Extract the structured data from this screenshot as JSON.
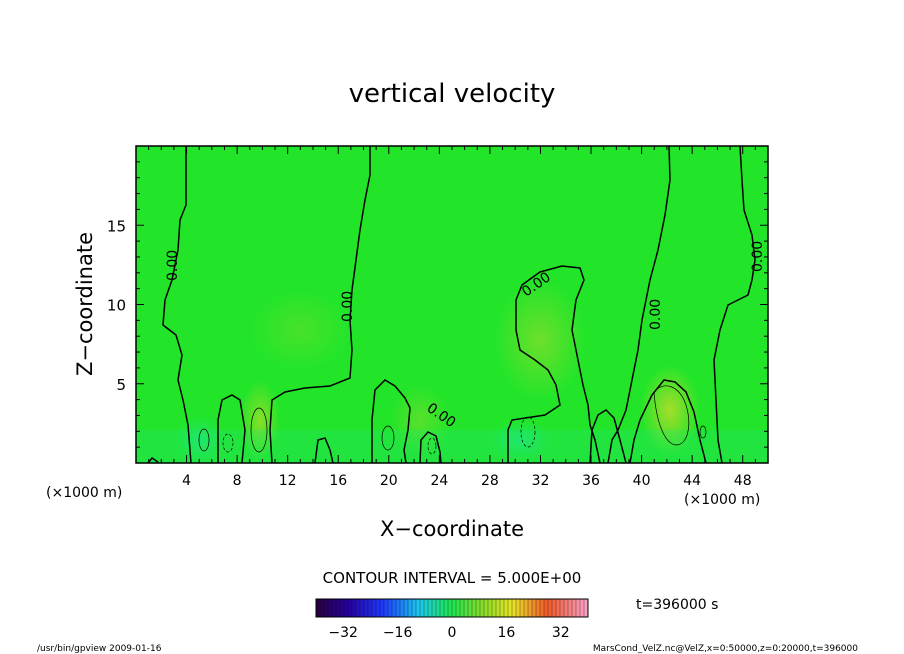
{
  "chart_data": {
    "type": "heatmap",
    "title": "vertical velocity",
    "xlabel": "X−coordinate",
    "ylabel": "Z−coordinate",
    "x_unit_label": "(×1000 m)",
    "y_unit_label": "(×1000 m)",
    "xlim": [
      0,
      50
    ],
    "ylim": [
      0,
      20
    ],
    "x_ticks": [
      4,
      8,
      12,
      16,
      20,
      24,
      28,
      32,
      36,
      40,
      44,
      48
    ],
    "y_ticks": [
      5,
      10,
      15
    ],
    "contour_labels": [
      "0.00",
      "0.00",
      "0.00",
      "0.00",
      "0.00",
      "0.00"
    ],
    "contour_interval_text": "CONTOUR INTERVAL = 5.000E+00",
    "time_text": "t=396000 s",
    "colorbar": {
      "min": -40,
      "max": 40,
      "ticks": [
        "−32",
        "−16",
        "0",
        "16",
        "32"
      ]
    },
    "field_background_color": "#22e52a"
  },
  "footer": {
    "left": "/usr/bin/gpview   2009-01-16",
    "right": "MarsCond_VelZ.nc@VelZ,x=0:50000,z=0:20000,t=396000"
  }
}
